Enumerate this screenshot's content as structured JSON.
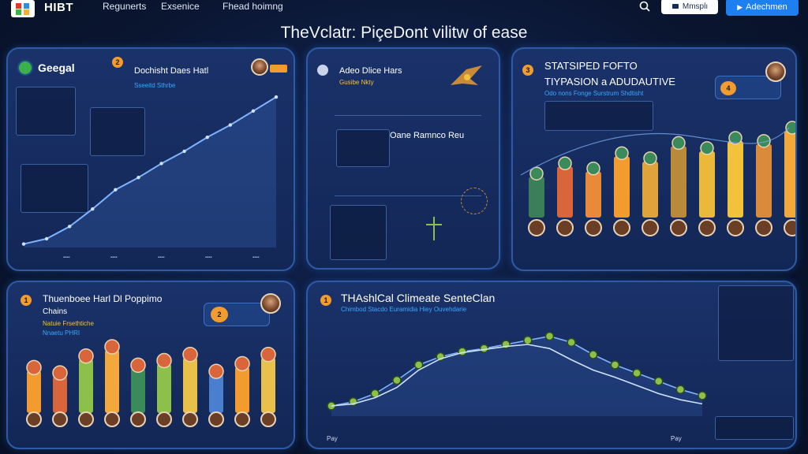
{
  "header": {
    "brand": "HIBT",
    "nav": [
      "Regunerts",
      "Exsenice",
      "Fhead hoimng"
    ],
    "message_button": "Mmsplı",
    "cta_button": "Adechmen",
    "title": "TheVclatr: PiçeDont vilitw of ease"
  },
  "panels": {
    "p1": {
      "logo_text": "Geegal",
      "badge": "2",
      "title": "Dochisht Daes Hatl",
      "sub_lines": [
        "Sseeitd Sthrbe"
      ],
      "chart_data": {
        "type": "line",
        "x": [
          0,
          1,
          2,
          3,
          4,
          5,
          6,
          7,
          8,
          9,
          10,
          11
        ],
        "y": [
          2,
          5,
          12,
          22,
          33,
          40,
          48,
          55,
          63,
          70,
          78,
          86
        ],
        "ylim": [
          0,
          100
        ]
      }
    },
    "p2": {
      "title": "Adeo Dlice Hars",
      "sub": "Gusibe Nkty",
      "mid_title": "Oane Ramnco Reu"
    },
    "p3": {
      "badge": "3",
      "title_line1": "STATSIPED FOFTO",
      "title_line2": "TIYPASION a ADUDAUTIVE",
      "sub": "Odo nons Fonge Surstrum Shdtisht",
      "badge_num": "4",
      "chart_data": {
        "type": "bar",
        "values": [
          40,
          50,
          45,
          60,
          55,
          70,
          65,
          75,
          72,
          85
        ],
        "colors": [
          "#3a7f5a",
          "#d9653a",
          "#e88a3a",
          "#f29b2e",
          "#e0a23a",
          "#b88a3a",
          "#e9b93a",
          "#f2c23a",
          "#d98a3a",
          "#f2a83a"
        ]
      }
    },
    "p4": {
      "badge": "1",
      "title": "Thuenboee Harl Dl Poppimo",
      "sub1": "Chains",
      "sub2": "Natuie Frsethtiche",
      "sub3": "Nnaetu PHRI",
      "badge_num": "2",
      "chart_data": {
        "type": "bar",
        "values": [
          55,
          48,
          70,
          82,
          58,
          64,
          72,
          50,
          60,
          72
        ],
        "colors": [
          "#f29b2e",
          "#d9653a",
          "#8cc04a",
          "#f2a83a",
          "#3a8a5a",
          "#8cc04a",
          "#e8c04a",
          "#4a7fd0",
          "#f29b2e",
          "#e8c04a"
        ]
      }
    },
    "p5": {
      "badge": "1",
      "title": "THAshlCal Climeate SenteClan",
      "sub": "Chimbod Stacdo Euramidia Hiey Ouvehdarie",
      "x_start": "Pay",
      "x_end": "Pay",
      "chart_data": {
        "type": "line",
        "series": [
          {
            "values": [
              10,
              14,
              22,
              35,
              50,
              58,
              63,
              66,
              70,
              74,
              78,
              72,
              60,
              50,
              42,
              34,
              26,
              20
            ]
          },
          {
            "values": [
              10,
              12,
              18,
              28,
              45,
              56,
              62,
              65,
              68,
              70,
              66,
              55,
              45,
              38,
              30,
              22,
              16,
              12
            ]
          }
        ],
        "ylim": [
          0,
          100
        ]
      }
    }
  },
  "colors": {
    "accent": "#1d7ff0",
    "orange": "#f29b2e",
    "line": "#7fb3ff",
    "node": "#8cc04a"
  }
}
